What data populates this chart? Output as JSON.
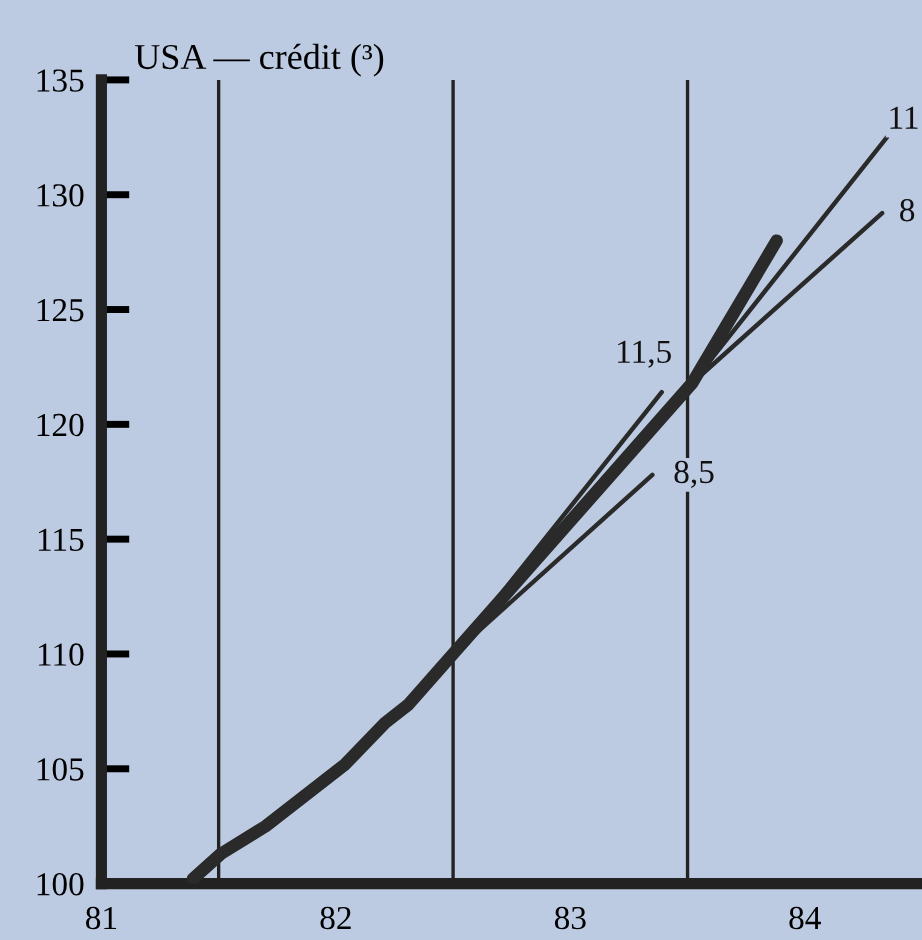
{
  "chart_data": {
    "type": "line",
    "title": "USA — crédit (³)",
    "xlim": [
      81.0,
      84.5
    ],
    "xticks": [
      81,
      82,
      83,
      84
    ],
    "ylim": [
      100,
      135
    ],
    "yticks": [
      100,
      105,
      110,
      115,
      120,
      125,
      130,
      135
    ],
    "grid": false,
    "legend": false,
    "marker": "none",
    "line_style": "solid",
    "ref_lines": [
      {
        "axis": "x",
        "value": 81.5,
        "color": "#222222"
      },
      {
        "axis": "x",
        "value": 82.5,
        "color": "#222222"
      },
      {
        "axis": "x",
        "value": 83.5,
        "color": "#222222"
      }
    ],
    "series": [
      {
        "color": "#2a2a2a",
        "x": [
          81.39,
          81.51,
          81.7,
          82.04,
          82.21,
          82.31,
          82.5,
          83.52,
          83.88
        ],
        "values": [
          100.2,
          101.3,
          102.5,
          105.2,
          107.0,
          107.8,
          110.0,
          121.8,
          128.0
        ]
      },
      {
        "name": "11,5",
        "color": "#2a2a2a",
        "x": [
          82.5,
          83.39
        ],
        "values": [
          110.0,
          121.4
        ]
      },
      {
        "name": "8,5",
        "color": "#2a2a2a",
        "x": [
          82.5,
          83.35
        ],
        "values": [
          110.0,
          117.8
        ]
      },
      {
        "name": "11",
        "color": "#2a2a2a",
        "x": [
          83.52,
          84.35
        ],
        "values": [
          121.8,
          132.5
        ]
      },
      {
        "name": "8",
        "color": "#2a2a2a",
        "x": [
          83.52,
          84.33
        ],
        "values": [
          121.8,
          129.2
        ]
      }
    ]
  }
}
